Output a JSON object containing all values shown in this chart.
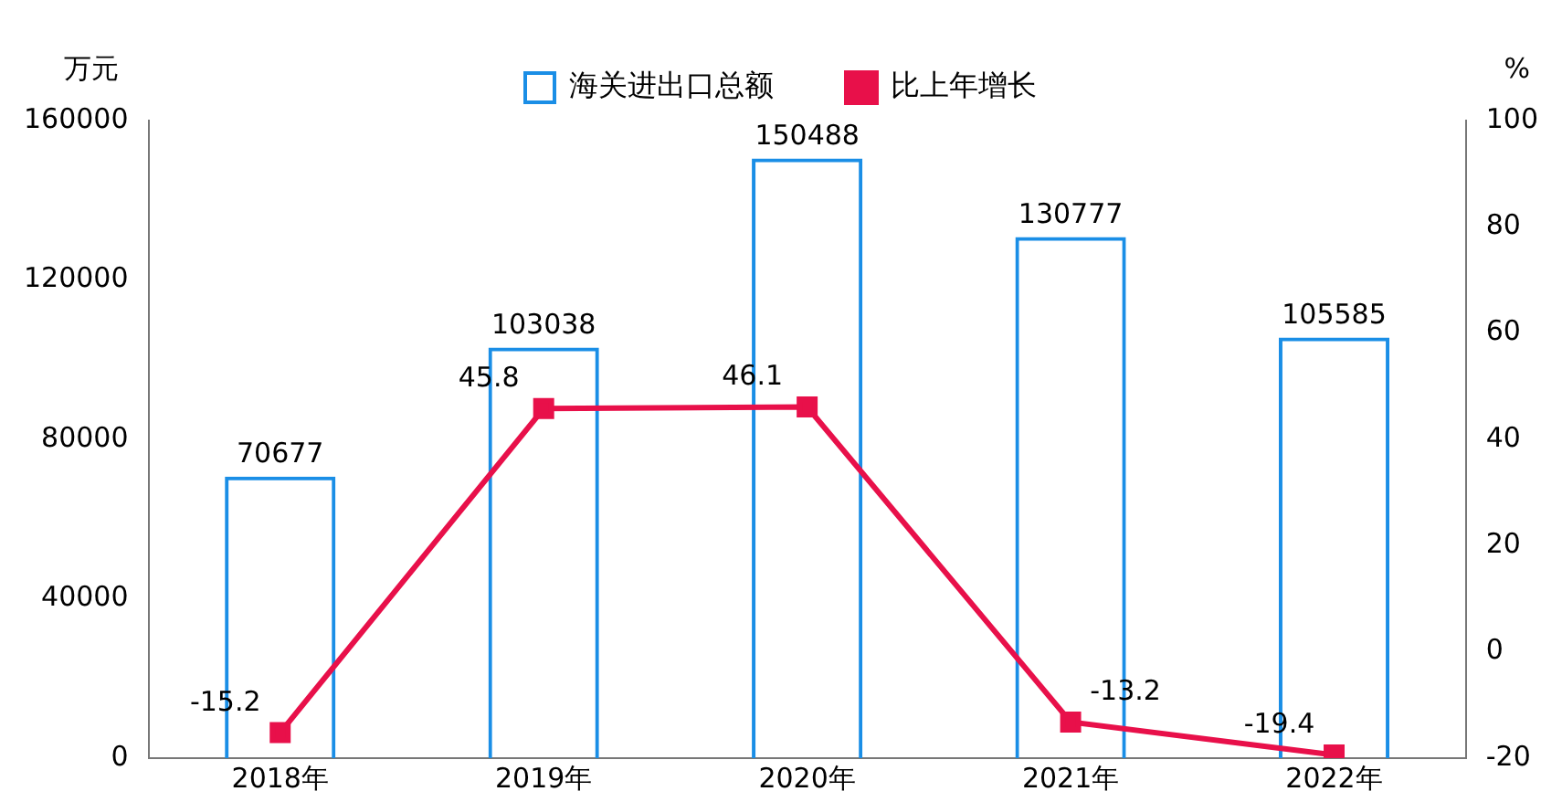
{
  "chart_data": {
    "type": "bar",
    "categories": [
      "2018年",
      "2019年",
      "2020年",
      "2021年",
      "2022年"
    ],
    "series": [
      {
        "name": "海关进出口总额",
        "color": "#1a8ee6",
        "values": [
          70677,
          103038,
          150488,
          130777,
          105585
        ]
      },
      {
        "name": "比上年增长",
        "type": "line",
        "axis": "y2",
        "color": "#e8104a",
        "values": [
          -15.2,
          45.8,
          46.1,
          -13.2,
          -19.4
        ]
      }
    ],
    "ylabel": "万元",
    "y2label": "%",
    "ylim": [
      0,
      160000
    ],
    "yticks": [
      0,
      40000,
      80000,
      120000,
      160000
    ],
    "y2lim": [
      -20,
      100
    ],
    "y2ticks": [
      -20,
      0,
      20,
      40,
      60,
      80,
      100
    ],
    "marker": "square",
    "data_labels": true,
    "legend": "top",
    "grid": false
  }
}
